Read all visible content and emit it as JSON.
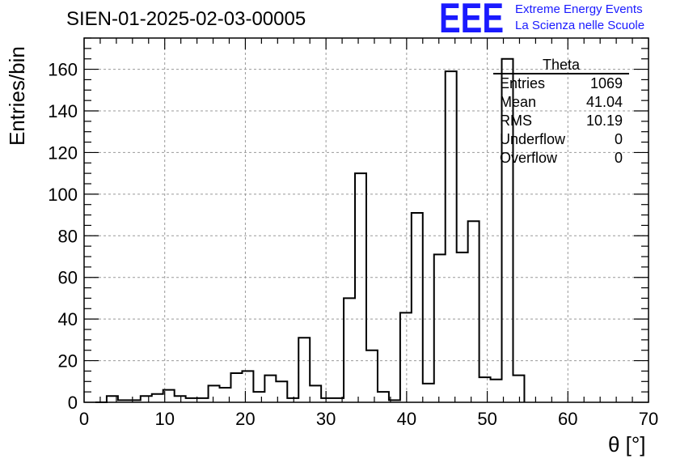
{
  "title": "SIEN-01-2025-02-03-00005",
  "logo": {
    "mark": "EEE",
    "line1": "Extreme Energy Events",
    "line2": "La Scienza nelle Scuole",
    "color": "#1a1aff"
  },
  "stats": {
    "name": "Theta",
    "rows": [
      {
        "label": "Entries",
        "value": "1069"
      },
      {
        "label": "Mean",
        "value": "41.04"
      },
      {
        "label": "RMS",
        "value": "10.19"
      },
      {
        "label": "Underflow",
        "value": "0"
      },
      {
        "label": "Overflow",
        "value": "0"
      }
    ]
  },
  "chart_data": {
    "type": "bar",
    "style": "step-histogram",
    "xlabel": "θ [°]",
    "ylabel": "Entries/bin",
    "xlim": [
      0,
      70
    ],
    "ylim": [
      0,
      175
    ],
    "xticks": [
      0,
      10,
      20,
      30,
      40,
      50,
      60,
      70
    ],
    "yticks": [
      0,
      20,
      40,
      60,
      80,
      100,
      120,
      140,
      160
    ],
    "grid": true,
    "bin_width": 1.4,
    "bin_edges_start": 1.4,
    "values": [
      0,
      3,
      1,
      1,
      3,
      4,
      6,
      3,
      2,
      2,
      8,
      7,
      14,
      15,
      5,
      13,
      10,
      2,
      31,
      8,
      2,
      2,
      50,
      110,
      25,
      5,
      1,
      43,
      91,
      9,
      71,
      159,
      72,
      87,
      12,
      11,
      165,
      13
    ]
  }
}
